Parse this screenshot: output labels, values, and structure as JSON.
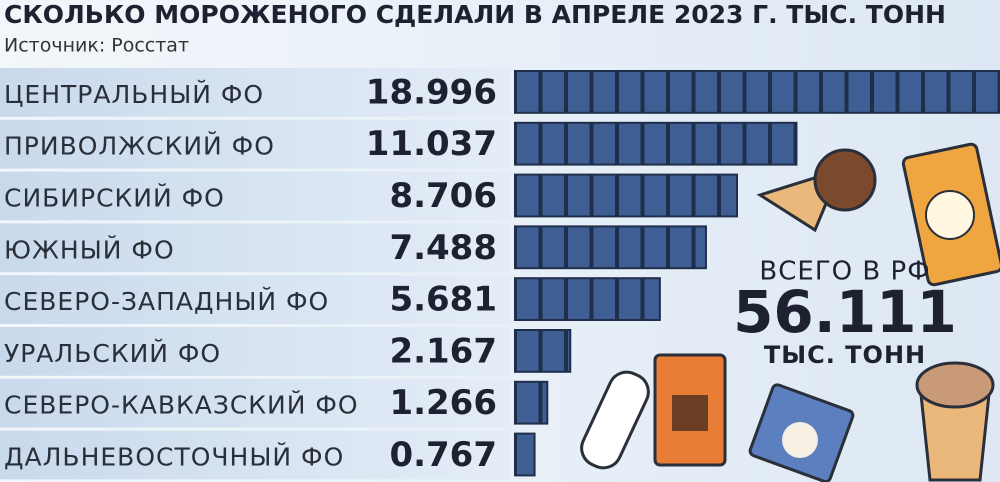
{
  "chart_data": {
    "type": "bar",
    "title": "СКОЛЬКО МОРОЖЕНОГО СДЕЛАЛИ В АПРЕЛЕ 2023 Г.  ТЫС. ТОНН",
    "subtitle": "Источник: Росстат",
    "categories": [
      "ЦЕНТРАЛЬНЫЙ ФО",
      "ПРИВОЛЖСКИЙ ФО",
      "СИБИРСКИЙ ФО",
      "ЮЖНЫЙ ФО",
      "СЕВЕРО-ЗАПАДНЫЙ ФО",
      "УРАЛЬСКИЙ ФО",
      "СЕВЕРО-КАВКАЗСКИЙ ФО",
      "ДАЛЬНЕВОСТОЧНЫЙ ФО"
    ],
    "values": [
      18.996,
      11.037,
      8.706,
      7.488,
      5.681,
      2.167,
      1.266,
      0.767
    ],
    "color": "#3f5f94",
    "total_label": "ВСЕГО В РФ",
    "total": 56.111,
    "total_unit": "ТЫС. ТОНН"
  }
}
